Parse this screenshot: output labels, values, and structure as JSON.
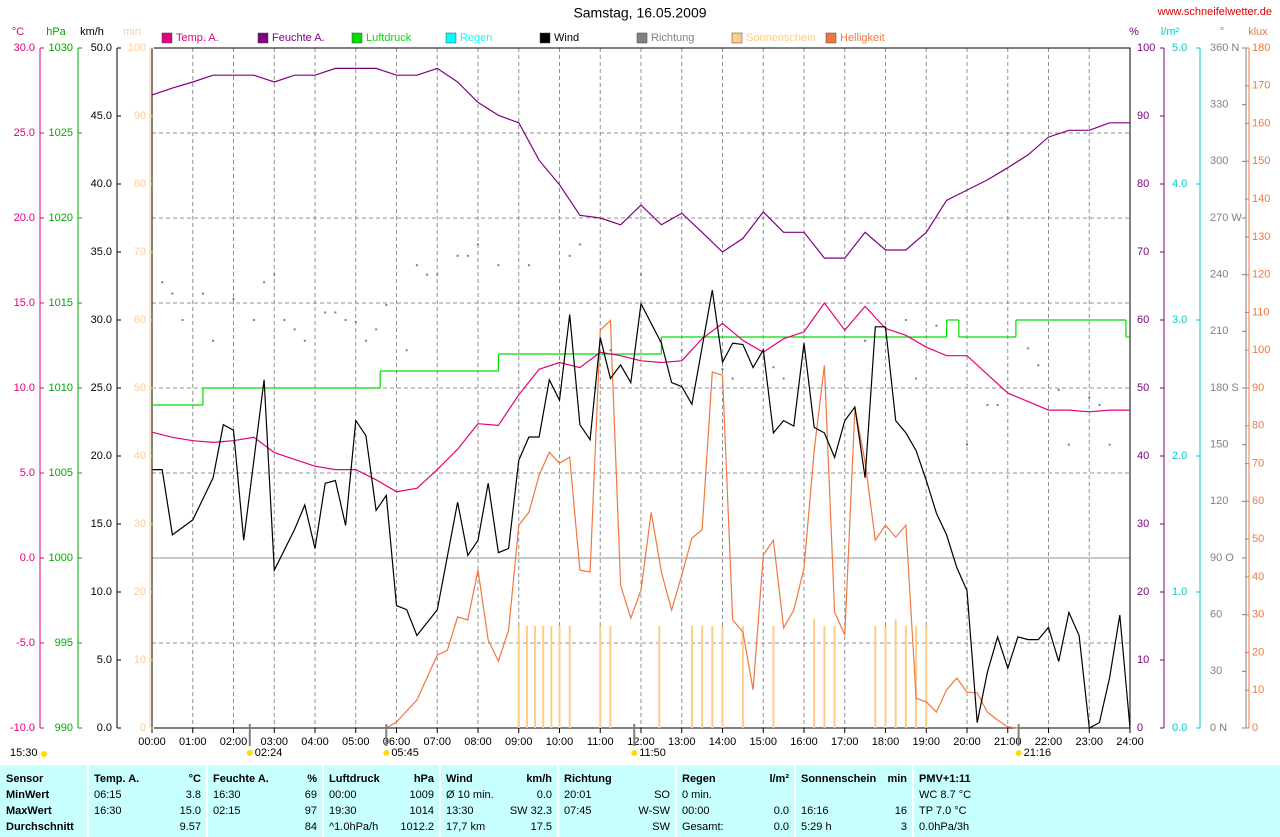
{
  "chart_data": {
    "type": "line",
    "title": "Samstag, 16.05.2009",
    "source": "www.schneifelwetter.de",
    "xlim": [
      0,
      24
    ],
    "xticks": [
      {
        "value": 0,
        "label": "00:00"
      },
      {
        "value": 1,
        "label": "01:00"
      },
      {
        "value": 2,
        "label": "02:00"
      },
      {
        "value": 3,
        "label": "03:00"
      },
      {
        "value": 4,
        "label": "04:00"
      },
      {
        "value": 5,
        "label": "05:00"
      },
      {
        "value": 6,
        "label": "06:00"
      },
      {
        "value": 7,
        "label": "07:00"
      },
      {
        "value": 8,
        "label": "08:00"
      },
      {
        "value": 9,
        "label": "09:00"
      },
      {
        "value": 10,
        "label": "10:00"
      },
      {
        "value": 11,
        "label": "11:00"
      },
      {
        "value": 12,
        "label": "12:00"
      },
      {
        "value": 13,
        "label": "13:00"
      },
      {
        "value": 14,
        "label": "14:00"
      },
      {
        "value": 15,
        "label": "15:00"
      },
      {
        "value": 16,
        "label": "16:00"
      },
      {
        "value": 17,
        "label": "17:00"
      },
      {
        "value": 18,
        "label": "18:00"
      },
      {
        "value": 19,
        "label": "19:00"
      },
      {
        "value": 20,
        "label": "20:00"
      },
      {
        "value": 21,
        "label": "21:00"
      },
      {
        "value": 22,
        "label": "22:00"
      },
      {
        "value": 23,
        "label": "23:00"
      },
      {
        "value": 24,
        "label": "24:00"
      }
    ],
    "grid": true,
    "ylabel": "°C",
    "ylim": [
      -10,
      30
    ],
    "yticks": [
      {
        "value": -10,
        "label": "-10.0"
      },
      {
        "value": -5,
        "label": "-5.0"
      },
      {
        "value": 0,
        "label": "0.0"
      },
      {
        "value": 5,
        "label": "5.0"
      },
      {
        "value": 10,
        "label": "10.0"
      },
      {
        "value": 15,
        "label": "15.0"
      },
      {
        "value": 20,
        "label": "20.0"
      },
      {
        "value": 25,
        "label": "25.0"
      },
      {
        "value": 30,
        "label": "30.0"
      }
    ],
    "y2label": "hPa",
    "y2lim": [
      990,
      1030
    ],
    "y2ticks": [
      990,
      995,
      1000,
      1005,
      1010,
      1015,
      1020,
      1025,
      1030
    ],
    "y3label": "km/h",
    "y3lim": [
      0,
      50
    ],
    "y3ticks": [
      {
        "value": 0,
        "label": "0.0"
      },
      {
        "value": 5,
        "label": "5.0"
      },
      {
        "value": 10,
        "label": "10.0"
      },
      {
        "value": 15,
        "label": "15.0"
      },
      {
        "value": 20,
        "label": "20.0"
      },
      {
        "value": 25,
        "label": "25.0"
      },
      {
        "value": 30,
        "label": "30.0"
      },
      {
        "value": 35,
        "label": "35.0"
      },
      {
        "value": 40,
        "label": "40.0"
      },
      {
        "value": 45,
        "label": "45.0"
      },
      {
        "value": 50,
        "label": "50.0"
      }
    ],
    "y4label": "min",
    "y4lim": [
      0,
      100
    ],
    "y4ticks": [
      0,
      10,
      20,
      30,
      40,
      50,
      60,
      70,
      80,
      90,
      100
    ],
    "y5label": "%",
    "y5lim": [
      0,
      100
    ],
    "y5ticks": [
      0,
      10,
      20,
      30,
      40,
      50,
      60,
      70,
      80,
      90,
      100
    ],
    "y6label": "l/m²",
    "y6lim": [
      0,
      5
    ],
    "y6ticks": [
      {
        "value": 0,
        "label": "0.0"
      },
      {
        "value": 1,
        "label": "1.0"
      },
      {
        "value": 2,
        "label": "2.0"
      },
      {
        "value": 3,
        "label": "3.0"
      },
      {
        "value": 4,
        "label": "4.0"
      },
      {
        "value": 5,
        "label": "5.0"
      }
    ],
    "y7label": "°",
    "y7lim": [
      0,
      360
    ],
    "y7ticks": [
      {
        "value": 0,
        "label": "0 N"
      },
      30,
      60,
      {
        "value": 90,
        "label": "90 O"
      },
      120,
      150,
      {
        "value": 180,
        "label": "180 S"
      },
      210,
      240,
      {
        "value": 270,
        "label": "270 W"
      },
      300,
      330,
      {
        "value": 360,
        "label": "360 N"
      }
    ],
    "y8label": "klux",
    "y8lim": [
      0,
      180
    ],
    "y8ticks": [
      0,
      10,
      20,
      30,
      40,
      50,
      60,
      70,
      80,
      90,
      100,
      110,
      120,
      130,
      140,
      150,
      160,
      170,
      180
    ],
    "series": [
      {
        "name": "Temp. A.",
        "color": "#e4007c",
        "axis": "y",
        "x": [
          0,
          0.5,
          1,
          1.5,
          2,
          2.5,
          3,
          3.5,
          4,
          4.5,
          5,
          5.5,
          6,
          6.5,
          7,
          7.5,
          8,
          8.5,
          9,
          9.5,
          10,
          10.5,
          11,
          11.5,
          12,
          12.5,
          13,
          13.5,
          14,
          14.5,
          15,
          15.5,
          16,
          16.5,
          17,
          17.5,
          18,
          18.5,
          19,
          19.5,
          20,
          20.5,
          21,
          21.5,
          22,
          22.5,
          23,
          23.5,
          24
        ],
        "values": [
          7.4,
          7.1,
          6.9,
          6.8,
          6.9,
          7.1,
          6.2,
          5.8,
          5.4,
          5.2,
          5.2,
          4.6,
          3.9,
          4.1,
          5.2,
          6.4,
          7.9,
          7.8,
          9.6,
          11.1,
          11.5,
          11.2,
          12.1,
          11.9,
          11.6,
          11.5,
          11.6,
          12.9,
          13.8,
          12.8,
          12.1,
          12.9,
          13.3,
          15.0,
          13.4,
          14.8,
          13.5,
          13.1,
          12.4,
          11.9,
          11.9,
          10.8,
          9.7,
          9.2,
          8.7,
          8.7,
          8.6,
          8.7,
          8.7
        ]
      },
      {
        "name": "Feuchte A.",
        "color": "#800080",
        "axis": "y5",
        "x": [
          0,
          0.5,
          1,
          1.5,
          2,
          2.5,
          3,
          3.5,
          4,
          4.5,
          5,
          5.5,
          6,
          6.5,
          7,
          7.5,
          8,
          8.5,
          9,
          9.5,
          10,
          10.5,
          11,
          11.5,
          12,
          12.5,
          13,
          13.5,
          14,
          14.5,
          15,
          15.5,
          16,
          16.5,
          17,
          17.5,
          18,
          18.5,
          19,
          19.5,
          20,
          20.5,
          21,
          21.5,
          22,
          22.5,
          23,
          23.5,
          24
        ],
        "values": [
          93.1,
          94.1,
          95,
          96,
          96,
          96,
          95,
          96,
          96,
          97,
          97,
          97,
          96,
          96,
          97,
          95,
          92,
          90.1,
          89,
          83.5,
          79.9,
          75.4,
          75,
          74,
          76.9,
          74,
          75.7,
          72.9,
          70,
          72,
          75.9,
          72.9,
          72.9,
          69.1,
          69.1,
          72.9,
          70.3,
          70.3,
          72.9,
          77.6,
          79.1,
          80.6,
          82.4,
          84.3,
          86.9,
          87.9,
          87.9,
          89,
          89
        ]
      },
      {
        "name": "Luftdruck",
        "color": "#00dd00",
        "axis": "y2",
        "step": true,
        "x": [
          0,
          1.25,
          5.6,
          8.5,
          12.5,
          19.5,
          19.8,
          21.2,
          23.9
        ],
        "values": [
          1009,
          1010,
          1011,
          1012,
          1013,
          1014,
          1013,
          1014,
          1013
        ]
      },
      {
        "name": "Regen",
        "color": "#00ffff",
        "axis": "y6",
        "x": [],
        "values": []
      },
      {
        "name": "Wind",
        "color": "#000000",
        "axis": "y3",
        "x": [
          0,
          0.25,
          0.5,
          1,
          1.5,
          1.75,
          2,
          2.25,
          2.5,
          2.75,
          3,
          3.5,
          3.75,
          4,
          4.25,
          4.5,
          4.75,
          5,
          5.25,
          5.5,
          5.75,
          6,
          6.25,
          6.5,
          7,
          7.5,
          7.75,
          8,
          8.25,
          8.5,
          8.75,
          9,
          9.25,
          9.5,
          9.75,
          10,
          10.25,
          10.5,
          10.75,
          11,
          11.25,
          11.5,
          11.75,
          12,
          12.5,
          12.75,
          13,
          13.25,
          13.75,
          14,
          14.25,
          14.5,
          14.75,
          15,
          15.25,
          15.5,
          15.75,
          16,
          16.25,
          16.5,
          16.75,
          17,
          17.25,
          17.5,
          17.75,
          18,
          18.25,
          18.5,
          18.75,
          19,
          19.25,
          19.5,
          19.75,
          20,
          20.25,
          20.5,
          20.75,
          21,
          21.25,
          21.5,
          21.75,
          22,
          22.25,
          22.5,
          22.75,
          23,
          23.25,
          23.5,
          23.75,
          24
        ],
        "values": [
          19.0,
          19.0,
          14.2,
          15.3,
          18.4,
          22.3,
          21.9,
          13.8,
          19.7,
          25.6,
          11.6,
          14.6,
          16.4,
          13.2,
          18.0,
          18.2,
          14.9,
          22.6,
          21.5,
          16.0,
          17.1,
          9.0,
          8.7,
          6.8,
          8.7,
          16.6,
          12.7,
          13.8,
          18.0,
          12.9,
          13.2,
          19.7,
          21.4,
          21.4,
          25.6,
          24.1,
          30.4,
          22.3,
          21.2,
          28.7,
          25.7,
          26.7,
          25.4,
          31.2,
          28.3,
          25.4,
          25.1,
          23.8,
          32.2,
          26.9,
          28.3,
          28.2,
          26.5,
          27.8,
          21.7,
          22.6,
          22.2,
          28.3,
          22.1,
          21.7,
          19.9,
          22.6,
          23.6,
          18.4,
          29.5,
          29.5,
          22.6,
          21.7,
          20.4,
          18.2,
          15.8,
          14.2,
          11.8,
          10.1,
          0.4,
          4.1,
          6.7,
          4.4,
          6.7,
          6.5,
          6.5,
          7.4,
          4.9,
          8.5,
          6.8,
          0.0,
          0.4,
          3.7,
          8.3,
          0.0
        ]
      },
      {
        "name": "Richtung",
        "color": "#808080",
        "axis": "y7",
        "type": "scatter",
        "x": [
          0.25,
          0.5,
          0.75,
          1.25,
          1.5,
          2,
          2.5,
          2.75,
          3,
          3.25,
          3.5,
          3.75,
          4.25,
          4.5,
          4.75,
          5,
          5.25,
          5.5,
          5.75,
          6.25,
          6.5,
          6.75,
          7,
          7.5,
          7.75,
          8,
          8.5,
          9.25,
          10.25,
          10.5,
          11.25,
          12,
          13,
          14,
          14.25,
          15.25,
          15.5,
          16,
          17,
          17.5,
          18.5,
          18.75,
          19.25,
          20,
          20.5,
          20.75,
          21.5,
          21.75,
          22.25,
          22.5,
          23,
          23.25,
          23.5,
          24
        ],
        "values": [
          236,
          230,
          216,
          230,
          205,
          227,
          216,
          236,
          240,
          216,
          211,
          205,
          220,
          220,
          216,
          215,
          205,
          211,
          224,
          200,
          245,
          240,
          240,
          250,
          250,
          256,
          245,
          245,
          250,
          256,
          200,
          240,
          200,
          190,
          185,
          191,
          185,
          200,
          211,
          205,
          216,
          185,
          213,
          150,
          171,
          171,
          201,
          192,
          179,
          150,
          175,
          171,
          150,
          230
        ]
      },
      {
        "name": "Sonnenschein",
        "color": "#ffcc88",
        "axis": "y4",
        "type": "bar",
        "x": [
          9,
          9.2,
          9.4,
          9.6,
          9.8,
          10,
          10.25,
          11,
          11.25,
          12.45,
          13.25,
          13.5,
          13.75,
          14,
          14.5,
          15.25,
          16.25,
          16.5,
          16.75,
          17.75,
          18,
          18.25,
          18.5,
          18.75,
          19
        ],
        "values": [
          15,
          15,
          15,
          15,
          15,
          15,
          15,
          15,
          15,
          15,
          15,
          15,
          15,
          15,
          15,
          15,
          16,
          15,
          15,
          15,
          15,
          16,
          15,
          15,
          15
        ]
      },
      {
        "name": "Helligkeit",
        "color": "#f07840",
        "axis": "y8",
        "x": [
          5.75,
          6,
          6.5,
          7,
          7.25,
          7.5,
          7.75,
          8,
          8.25,
          8.5,
          8.75,
          9,
          9.25,
          9.5,
          9.75,
          10,
          10.25,
          10.5,
          10.75,
          11,
          11.25,
          11.5,
          11.75,
          12,
          12.25,
          12.5,
          12.75,
          13,
          13.25,
          13.5,
          13.75,
          14,
          14.25,
          14.5,
          14.75,
          15,
          15.25,
          15.5,
          15.75,
          16,
          16.25,
          16.5,
          16.75,
          17,
          17.25,
          17.5,
          17.75,
          18,
          18.25,
          18.5,
          18.75,
          19,
          19.25,
          19.5,
          19.75,
          20,
          20.25,
          20.5,
          20.75,
          21,
          21.25
        ],
        "values": [
          0,
          1.6,
          7.4,
          19.3,
          20.6,
          29.4,
          28.6,
          41.8,
          23.3,
          17.7,
          25.9,
          53.7,
          57.1,
          66.9,
          73,
          70.1,
          71.7,
          41.8,
          41.3,
          105.3,
          107.9,
          37.8,
          29.1,
          36.5,
          57.1,
          41.3,
          31.2,
          40.5,
          50.3,
          52.4,
          94.2,
          93.4,
          28.6,
          25.4,
          10.1,
          45.8,
          49.7,
          26.5,
          31.2,
          42.3,
          73.5,
          96,
          30.7,
          24.6,
          84.7,
          70.4,
          49.7,
          53.7,
          50.5,
          53.7,
          7.9,
          6.9,
          4.2,
          10.1,
          13.2,
          9.5,
          9.3,
          4.2,
          2.1,
          0.3,
          0
        ]
      }
    ],
    "markers": [
      {
        "x": 2.4,
        "label": "02:24"
      },
      {
        "x": 5.75,
        "label": "05:45"
      },
      {
        "x": 11.8333,
        "label": "11:50"
      },
      {
        "x": 21.2667,
        "label": "21:16"
      }
    ],
    "annotation": "15:30"
  },
  "table": {
    "header": [
      {
        "left": "Sensor"
      },
      {
        "left": "Temp. A.",
        "right": "°C"
      },
      {
        "left": "Feuchte A.",
        "right": "%"
      },
      {
        "left": "Luftdruck",
        "right": "hPa"
      },
      {
        "left": "Wind",
        "right": "km/h"
      },
      {
        "left": "Richtung"
      },
      {
        "left": "Regen",
        "right": "l/m²"
      },
      {
        "left": "Sonnenschein",
        "right": "min"
      },
      {
        "left": "PMV+1:11"
      }
    ],
    "rows": [
      [
        {
          "left": "MinWert"
        },
        {
          "left": "06:15",
          "right": "3.8"
        },
        {
          "left": "16:30",
          "right": "69"
        },
        {
          "left": "00:00",
          "right": "1009"
        },
        {
          "left": "Ø 10 min.",
          "right": "0.0"
        },
        {
          "left": "20:01",
          "right": "SO"
        },
        {
          "left": "0 min."
        },
        {},
        {
          "left": "WC 8.7 °C"
        }
      ],
      [
        {
          "left": "MaxWert"
        },
        {
          "left": "16:30",
          "right": "15.0"
        },
        {
          "left": "02:15",
          "right": "97"
        },
        {
          "left": "19:30",
          "right": "1014"
        },
        {
          "left": "13:30",
          "right": "SW 32.3"
        },
        {
          "left": "07:45",
          "right": "W-SW"
        },
        {
          "left": "00:00",
          "right": "0.0"
        },
        {
          "left": "16:16",
          "right": "16"
        },
        {
          "left": "TP 7.0 °C"
        }
      ],
      [
        {
          "left": "Durchschnitt"
        },
        {
          "right": "9.57"
        },
        {
          "right": "84"
        },
        {
          "left": "^1.0hPa/h",
          "right": "1012.2"
        },
        {
          "left": "17,7 km",
          "right": "17.5"
        },
        {
          "right": "SW"
        },
        {
          "left": "Gesamt:",
          "right": "0.0"
        },
        {
          "left": "5:29 h",
          "right": "3"
        },
        {
          "left": "0.0hPa/3h"
        }
      ]
    ]
  }
}
